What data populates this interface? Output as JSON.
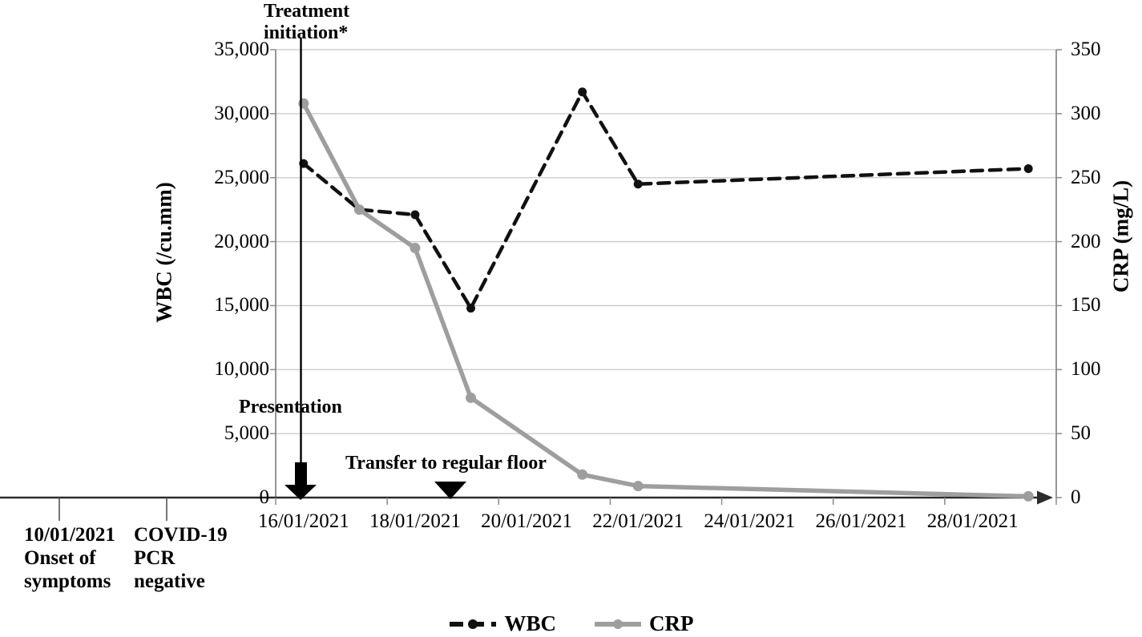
{
  "chart_data": {
    "type": "line",
    "x_categories": [
      "16/01/2021",
      "17/01/2021",
      "18/01/2021",
      "19/01/2021",
      "20/01/2021",
      "21/01/2021",
      "22/01/2021",
      "23/01/2021",
      "24/01/2021",
      "25/01/2021",
      "26/01/2021",
      "27/01/2021",
      "28/01/2021",
      "29/01/2021"
    ],
    "x_tick_labels": [
      "16/01/2021",
      "18/01/2021",
      "20/01/2021",
      "22/01/2021",
      "24/01/2021",
      "26/01/2021",
      "28/01/2021"
    ],
    "left_axis": {
      "title": "WBC (/cu.mm)",
      "min": 0,
      "max": 35000,
      "tick_step": 5000,
      "tick_labels_top_down": [
        "35,000",
        "30,000",
        "25,000",
        "20,000",
        "15,000",
        "10,000",
        "5,000",
        "0"
      ]
    },
    "right_axis": {
      "title": "CRP (mg/L)",
      "min": 0,
      "max": 350,
      "tick_step": 50,
      "tick_labels_top_down": [
        "350",
        "300",
        "250",
        "200",
        "150",
        "100",
        "50",
        "0"
      ]
    },
    "grid": true,
    "legend_position": "bottom",
    "series": [
      {
        "name": "WBC",
        "axis": "left",
        "style": "dashed",
        "color": "#111111",
        "points": [
          {
            "date": "16/01/2021",
            "xi": 0,
            "value": 26100
          },
          {
            "date": "17/01/2021",
            "xi": 1,
            "value": 22500
          },
          {
            "date": "18/01/2021",
            "xi": 2,
            "value": 22100
          },
          {
            "date": "19/01/2021",
            "xi": 3,
            "value": 14800
          },
          {
            "date": "21/01/2021",
            "xi": 5,
            "value": 31700
          },
          {
            "date": "22/01/2021",
            "xi": 6,
            "value": 24500
          },
          {
            "date": "29/01/2021",
            "xi": 13,
            "value": 25700
          }
        ]
      },
      {
        "name": "CRP",
        "axis": "right",
        "style": "solid",
        "color": "#9e9e9e",
        "points": [
          {
            "date": "16/01/2021",
            "xi": 0,
            "value": 308
          },
          {
            "date": "17/01/2021",
            "xi": 1,
            "value": 225
          },
          {
            "date": "18/01/2021",
            "xi": 2,
            "value": 195
          },
          {
            "date": "19/01/2021",
            "xi": 3,
            "value": 78
          },
          {
            "date": "21/01/2021",
            "xi": 5,
            "value": 18
          },
          {
            "date": "22/01/2021",
            "xi": 6,
            "value": 9
          },
          {
            "date": "29/01/2021",
            "xi": 13,
            "value": 1
          }
        ]
      }
    ]
  },
  "annotations": {
    "treatment": {
      "lines": [
        "Treatment",
        "initiation*"
      ]
    },
    "presentation": {
      "label": "Presentation"
    },
    "transfer": {
      "label": "Transfer to regular floor"
    }
  },
  "timeline_events": [
    {
      "lines": [
        "10/01/2021",
        "Onset of",
        "symptoms"
      ]
    },
    {
      "lines": [
        "COVID-19",
        "PCR",
        "negative"
      ]
    }
  ],
  "legend": {
    "wbc_label": "WBC",
    "crp_label": "CRP"
  },
  "colors": {
    "wbc": "#111111",
    "crp": "#9e9e9e",
    "grid": "#c8c8c8",
    "axis": "#2b2b2b",
    "border": "#8a8a8a",
    "event_tick": "#555555"
  }
}
